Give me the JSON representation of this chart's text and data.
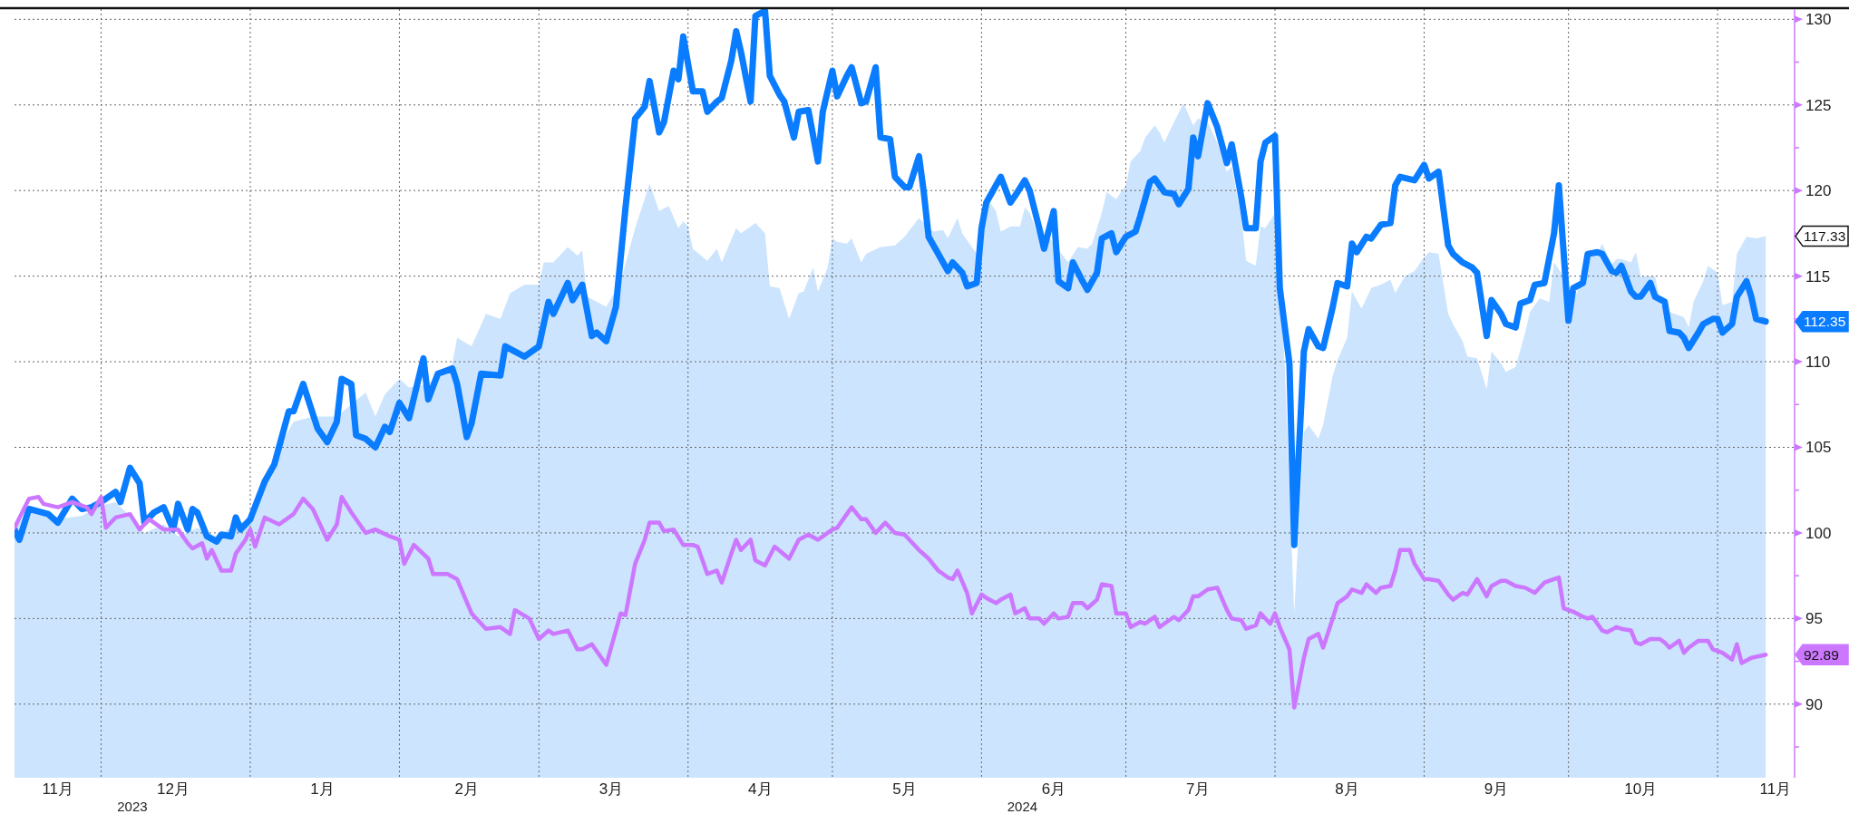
{
  "chart_data": {
    "type": "line",
    "xlim": [
      "2023-11-13",
      "2024-11-17"
    ],
    "xticks": [
      {
        "value": "2023-11-22",
        "label": "11月"
      },
      {
        "value": "2023-12-01",
        "label": null
      },
      {
        "value": "2023-12-16",
        "label": "12月"
      },
      {
        "value": "2024-01-01",
        "label": null
      },
      {
        "value": "2024-01-16",
        "label": "1月"
      },
      {
        "value": "2024-02-01",
        "label": null
      },
      {
        "value": "2024-02-15",
        "label": "2月"
      },
      {
        "value": "2024-03-01",
        "label": null
      },
      {
        "value": "2024-03-16",
        "label": "3月"
      },
      {
        "value": "2024-04-01",
        "label": null
      },
      {
        "value": "2024-04-16",
        "label": "4月"
      },
      {
        "value": "2024-05-01",
        "label": null
      },
      {
        "value": "2024-05-16",
        "label": "5月"
      },
      {
        "value": "2024-06-01",
        "label": null
      },
      {
        "value": "2024-06-16",
        "label": "6月"
      },
      {
        "value": "2024-07-01",
        "label": null
      },
      {
        "value": "2024-07-16",
        "label": "7月"
      },
      {
        "value": "2024-08-01",
        "label": null
      },
      {
        "value": "2024-08-16",
        "label": "8月"
      },
      {
        "value": "2024-09-01",
        "label": null
      },
      {
        "value": "2024-09-16",
        "label": "9月"
      },
      {
        "value": "2024-10-01",
        "label": null
      },
      {
        "value": "2024-10-16",
        "label": "10月"
      },
      {
        "value": "2024-11-01",
        "label": null
      },
      {
        "value": "2024-11-13",
        "label": "11月"
      }
    ],
    "ylim": [
      85.7,
      130.6
    ],
    "yticks": [
      {
        "value": 87.5,
        "label": null
      },
      90,
      {
        "value": 92.5,
        "label": null
      },
      95,
      {
        "value": 97.5,
        "label": null
      },
      100,
      {
        "value": 102.5,
        "label": null
      },
      105,
      {
        "value": 107.5,
        "label": null
      },
      110,
      {
        "value": 112.5,
        "label": null
      },
      115,
      {
        "value": 117.5,
        "label": null
      },
      120,
      {
        "value": 122.5,
        "label": null
      },
      125,
      {
        "value": 127.5,
        "label": null
      },
      130
    ],
    "grid": true,
    "line_style": "solid",
    "annotations": [
      "2023",
      "2024",
      {
        "text": "117.33",
        "x": "2024-11-11",
        "y": 117.33
      },
      {
        "text": "112.35",
        "x": "2024-11-11",
        "y": 112.35
      },
      {
        "text": "92.89",
        "x": "2024-11-11",
        "y": 92.89
      }
    ],
    "series": [
      {
        "type": "area",
        "color": "#cce4fd",
        "x": [
          "2023-11-13",
          "2023-11-16",
          "2023-11-22",
          "2023-11-27",
          "2023-12-01",
          "2023-12-04",
          "2023-12-07",
          "2023-12-10",
          "2023-12-14",
          "2023-12-17",
          "2023-12-21",
          "2023-12-25",
          "2023-12-29",
          "2024-01-01",
          "2024-01-02",
          "2024-01-06",
          "2024-01-10",
          "2024-01-14",
          "2024-01-19",
          "2024-01-25",
          "2024-01-27",
          "2024-01-29",
          "2024-02-01",
          "2024-02-03",
          "2024-02-07",
          "2024-02-12",
          "2024-02-13",
          "2024-02-16",
          "2024-02-19",
          "2024-02-22",
          "2024-02-24",
          "2024-02-27",
          "2024-03-01",
          "2024-03-02",
          "2024-03-04",
          "2024-03-07",
          "2024-03-09",
          "2024-03-10",
          "2024-03-11",
          "2024-03-15",
          "2024-03-18",
          "2024-03-21",
          "2024-03-24",
          "2024-03-26",
          "2024-03-28",
          "2024-03-30",
          "2024-03-31",
          "2024-04-01",
          "2024-04-02",
          "2024-04-05",
          "2024-04-07",
          "2024-04-08",
          "2024-04-11",
          "2024-04-12",
          "2024-04-15",
          "2024-04-17",
          "2024-04-18",
          "2024-04-20",
          "2024-04-22",
          "2024-04-24",
          "2024-04-25",
          "2024-04-27",
          "2024-04-28",
          "2024-04-30",
          "2024-05-01",
          "2024-05-02",
          "2024-05-04",
          "2024-05-05",
          "2024-05-07",
          "2024-05-08",
          "2024-05-11",
          "2024-05-14",
          "2024-05-16",
          "2024-05-19",
          "2024-05-20",
          "2024-05-22",
          "2024-05-24",
          "2024-05-25",
          "2024-05-27",
          "2024-05-28",
          "2024-05-31",
          "2024-06-01",
          "2024-06-02",
          "2024-06-04",
          "2024-06-05",
          "2024-06-07",
          "2024-06-09",
          "2024-06-10",
          "2024-06-11",
          "2024-06-13",
          "2024-06-15",
          "2024-06-16",
          "2024-06-19",
          "2024-06-21",
          "2024-06-23",
          "2024-06-24",
          "2024-06-26",
          "2024-06-27",
          "2024-06-29",
          "2024-07-01",
          "2024-07-02",
          "2024-07-04",
          "2024-07-05",
          "2024-07-07",
          "2024-07-08",
          "2024-07-09",
          "2024-07-11",
          "2024-07-13",
          "2024-07-15",
          "2024-07-16",
          "2024-07-18",
          "2024-07-20",
          "2024-07-22",
          "2024-07-23",
          "2024-07-25",
          "2024-07-26",
          "2024-07-28",
          "2024-07-29",
          "2024-07-30",
          "2024-08-01",
          "2024-08-03",
          "2024-08-05",
          "2024-08-07",
          "2024-08-08",
          "2024-08-10",
          "2024-08-11",
          "2024-08-13",
          "2024-08-14",
          "2024-08-16",
          "2024-08-17",
          "2024-08-19",
          "2024-08-21",
          "2024-08-23",
          "2024-08-25",
          "2024-08-26",
          "2024-08-28",
          "2024-08-30",
          "2024-09-01",
          "2024-09-02",
          "2024-09-04",
          "2024-09-06",
          "2024-09-07",
          "2024-09-09",
          "2024-09-10",
          "2024-09-12",
          "2024-09-14",
          "2024-09-15",
          "2024-09-17",
          "2024-09-18",
          "2024-09-20",
          "2024-09-22",
          "2024-09-23",
          "2024-09-25",
          "2024-09-27",
          "2024-09-28",
          "2024-09-30",
          "2024-10-01",
          "2024-10-02",
          "2024-10-04",
          "2024-10-05",
          "2024-10-07",
          "2024-10-08",
          "2024-10-10",
          "2024-10-11",
          "2024-10-12",
          "2024-10-14",
          "2024-10-15",
          "2024-10-16",
          "2024-10-17",
          "2024-10-19",
          "2024-10-20",
          "2024-10-22",
          "2024-10-24",
          "2024-10-25",
          "2024-10-26",
          "2024-10-27",
          "2024-10-29",
          "2024-10-30",
          "2024-11-01",
          "2024-11-02",
          "2024-11-04",
          "2024-11-05",
          "2024-11-07",
          "2024-11-09",
          "2024-11-11"
        ],
        "values": [
          100.2,
          101.4,
          100.8,
          101.0,
          101.6,
          101.8,
          101.0,
          100.0,
          100.5,
          99.8,
          100.3,
          99.8,
          100.5,
          100.8,
          101.0,
          104.5,
          106.5,
          106.8,
          106.8,
          108.2,
          106.8,
          108.1,
          109.0,
          108.5,
          108.7,
          109.9,
          111.4,
          110.9,
          112.8,
          112.5,
          114.0,
          114.5,
          114.5,
          115.8,
          115.8,
          116.7,
          116.2,
          116.5,
          113.8,
          113.2,
          114.7,
          117.8,
          120.4,
          118.8,
          119.1,
          117.8,
          118.2,
          117.9,
          116.6,
          115.9,
          116.6,
          115.8,
          117.8,
          117.5,
          118.1,
          117.5,
          114.4,
          114.3,
          112.5,
          114.0,
          114.1,
          115.5,
          114.1,
          115.5,
          117.2,
          117.0,
          116.9,
          117.2,
          115.8,
          116.3,
          116.7,
          116.8,
          117.3,
          118.4,
          118.1,
          117.6,
          117.7,
          117.2,
          118.4,
          117.5,
          116.3,
          117.3,
          119.6,
          118.8,
          117.6,
          117.9,
          117.9,
          119.0,
          118.7,
          117.2,
          117.3,
          116.9,
          115.8,
          116.7,
          116.6,
          116.9,
          118.7,
          119.9,
          119.5,
          120.3,
          121.7,
          122.3,
          123.1,
          123.8,
          123.4,
          122.8,
          124.0,
          125.1,
          123.8,
          124.2,
          124.0,
          122.8,
          121.1,
          121.4,
          118.4,
          115.9,
          115.6,
          117.9,
          117.8,
          118.7,
          109.9,
          95.3,
          105.9,
          106.3,
          105.5,
          106.3,
          109.2,
          110.1,
          111.4,
          114.1,
          113.1,
          114.3,
          114.5,
          114.8,
          114.0,
          115.0,
          115.3,
          116.1,
          116.4,
          116.3,
          112.8,
          112.2,
          111.2,
          110.3,
          110.2,
          108.4,
          110.6,
          109.9,
          109.4,
          109.7,
          111.7,
          112.9,
          113.7,
          113.5,
          115.8,
          115.0,
          112.9,
          113.5,
          115.0,
          116.1,
          116.3,
          116.9,
          115.7,
          116.0,
          116.0,
          115.8,
          116.4,
          115.0,
          115.0,
          115.0,
          113.6,
          112.9,
          112.7,
          112.6,
          112.0,
          113.5,
          114.7,
          115.6,
          115.2,
          113.3,
          113.5,
          116.3,
          117.3,
          117.2,
          117.33
        ]
      },
      {
        "type": "line",
        "color": "#0a7cff",
        "x": [
          "2023-11-13",
          "2023-11-14",
          "2023-11-16",
          "2023-11-20",
          "2023-11-22",
          "2023-11-25",
          "2023-11-27",
          "2023-11-29",
          "2023-12-01",
          "2023-12-04",
          "2023-12-05",
          "2023-12-07",
          "2023-12-09",
          "2023-12-10",
          "2023-12-12",
          "2023-12-14",
          "2023-12-16",
          "2023-12-17",
          "2023-12-19",
          "2023-12-20",
          "2023-12-21",
          "2023-12-23",
          "2023-12-25",
          "2023-12-26",
          "2023-12-28",
          "2023-12-29",
          "2023-12-30",
          "2024-01-01",
          "2024-01-04",
          "2024-01-06",
          "2024-01-09",
          "2024-01-10",
          "2024-01-12",
          "2024-01-15",
          "2024-01-17",
          "2024-01-19",
          "2024-01-20",
          "2024-01-22",
          "2024-01-23",
          "2024-01-25",
          "2024-01-27",
          "2024-01-29",
          "2024-01-30",
          "2024-02-01",
          "2024-02-03",
          "2024-02-06",
          "2024-02-07",
          "2024-02-09",
          "2024-02-12",
          "2024-02-13",
          "2024-02-15",
          "2024-02-16",
          "2024-02-18",
          "2024-02-22",
          "2024-02-23",
          "2024-02-27",
          "2024-03-01",
          "2024-03-03",
          "2024-03-04",
          "2024-03-07",
          "2024-03-08",
          "2024-03-10",
          "2024-03-12",
          "2024-03-13",
          "2024-03-15",
          "2024-03-17",
          "2024-03-19",
          "2024-03-21",
          "2024-03-23",
          "2024-03-24",
          "2024-03-26",
          "2024-03-27",
          "2024-03-29",
          "2024-03-30",
          "2024-03-31",
          "2024-04-02",
          "2024-04-04",
          "2024-04-05",
          "2024-04-07",
          "2024-04-08",
          "2024-04-10",
          "2024-04-11",
          "2024-04-12",
          "2024-04-14",
          "2024-04-15",
          "2024-04-17",
          "2024-04-18",
          "2024-04-20",
          "2024-04-21",
          "2024-04-23",
          "2024-04-24",
          "2024-04-26",
          "2024-04-28",
          "2024-04-29",
          "2024-05-01",
          "2024-05-02",
          "2024-05-04",
          "2024-05-05",
          "2024-05-07",
          "2024-05-08",
          "2024-05-10",
          "2024-05-11",
          "2024-05-13",
          "2024-05-14",
          "2024-05-16",
          "2024-05-17",
          "2024-05-19",
          "2024-05-20",
          "2024-05-21",
          "2024-05-23",
          "2024-05-25",
          "2024-05-26",
          "2024-05-28",
          "2024-05-29",
          "2024-05-31",
          "2024-06-01",
          "2024-06-02",
          "2024-06-04",
          "2024-06-05",
          "2024-06-07",
          "2024-06-08",
          "2024-06-10",
          "2024-06-11",
          "2024-06-13",
          "2024-06-14",
          "2024-06-16",
          "2024-06-17",
          "2024-06-19",
          "2024-06-20",
          "2024-06-22",
          "2024-06-23",
          "2024-06-25",
          "2024-06-26",
          "2024-06-28",
          "2024-06-29",
          "2024-07-01",
          "2024-07-03",
          "2024-07-04",
          "2024-07-06",
          "2024-07-07",
          "2024-07-09",
          "2024-07-11",
          "2024-07-12",
          "2024-07-14",
          "2024-07-15",
          "2024-07-16",
          "2024-07-18",
          "2024-07-20",
          "2024-07-22",
          "2024-07-23",
          "2024-07-25",
          "2024-07-26",
          "2024-07-28",
          "2024-07-29",
          "2024-07-30",
          "2024-08-01",
          "2024-08-02",
          "2024-08-04",
          "2024-08-05",
          "2024-08-07",
          "2024-08-08",
          "2024-08-10",
          "2024-08-11",
          "2024-08-13",
          "2024-08-14",
          "2024-08-16",
          "2024-08-17",
          "2024-08-18",
          "2024-08-20",
          "2024-08-21",
          "2024-08-23",
          "2024-08-25",
          "2024-08-26",
          "2024-08-27",
          "2024-08-30",
          "2024-09-01",
          "2024-09-02",
          "2024-09-04",
          "2024-09-06",
          "2024-09-07",
          "2024-09-09",
          "2024-09-11",
          "2024-09-12",
          "2024-09-14",
          "2024-09-15",
          "2024-09-17",
          "2024-09-18",
          "2024-09-20",
          "2024-09-21",
          "2024-09-23",
          "2024-09-24",
          "2024-09-26",
          "2024-09-28",
          "2024-09-29",
          "2024-10-01",
          "2024-10-02",
          "2024-10-04",
          "2024-10-05",
          "2024-10-07",
          "2024-10-08",
          "2024-10-10",
          "2024-10-11",
          "2024-10-12",
          "2024-10-14",
          "2024-10-15",
          "2024-10-16",
          "2024-10-18",
          "2024-10-19",
          "2024-10-21",
          "2024-10-22",
          "2024-10-24",
          "2024-10-25",
          "2024-10-26",
          "2024-10-28",
          "2024-10-29",
          "2024-10-31",
          "2024-11-01",
          "2024-11-02",
          "2024-11-04",
          "2024-11-05",
          "2024-11-07",
          "2024-11-08",
          "2024-11-09",
          "2024-11-11"
        ],
        "values": [
          100.2,
          99.6,
          101.4,
          101.1,
          100.6,
          102.0,
          101.4,
          101.5,
          101.8,
          102.4,
          101.8,
          103.8,
          102.9,
          100.6,
          101.2,
          101.5,
          100.2,
          101.7,
          100.2,
          101.4,
          101.2,
          99.8,
          99.5,
          99.9,
          99.8,
          100.9,
          100.2,
          100.8,
          103.0,
          104.0,
          107.1,
          107.1,
          108.7,
          106.1,
          105.3,
          106.5,
          109.0,
          108.7,
          105.7,
          105.5,
          105.0,
          106.2,
          105.9,
          107.6,
          106.7,
          110.2,
          107.8,
          109.3,
          109.6,
          108.7,
          105.6,
          106.4,
          109.3,
          109.2,
          110.9,
          110.3,
          110.9,
          113.5,
          112.8,
          114.6,
          113.6,
          114.5,
          111.5,
          111.7,
          111.2,
          113.2,
          119.0,
          124.2,
          124.9,
          126.4,
          123.4,
          124.0,
          127.0,
          126.5,
          129.0,
          125.8,
          125.8,
          124.6,
          125.2,
          125.4,
          127.6,
          129.3,
          128.1,
          125.2,
          130.2,
          130.5,
          126.7,
          125.6,
          125.2,
          123.1,
          124.6,
          124.7,
          121.7,
          124.6,
          127.0,
          125.5,
          126.7,
          127.2,
          125.1,
          125.2,
          127.2,
          123.1,
          123.0,
          120.8,
          120.2,
          120.2,
          122.0,
          119.9,
          117.3,
          116.3,
          115.3,
          115.8,
          115.2,
          114.4,
          114.6,
          117.8,
          119.3,
          120.3,
          120.8,
          119.3,
          119.7,
          120.6,
          120.0,
          117.8,
          116.6,
          118.8,
          114.7,
          114.3,
          115.8,
          114.7,
          114.2,
          115.2,
          117.2,
          117.5,
          116.4,
          117.3,
          117.6,
          118.5,
          120.5,
          120.7,
          119.9,
          119.8,
          119.2,
          120.1,
          123.1,
          122.0,
          125.1,
          123.7,
          121.6,
          122.7,
          119.6,
          117.8,
          117.8,
          121.7,
          122.8,
          123.2,
          114.3,
          109.9,
          99.3,
          110.6,
          111.9,
          110.9,
          110.8,
          113.2,
          114.6,
          114.4,
          116.9,
          116.4,
          117.3,
          117.2,
          118.0,
          118.1,
          120.3,
          120.8,
          120.6,
          121.5,
          120.7,
          121.1,
          116.8,
          116.3,
          115.8,
          115.5,
          115.2,
          111.5,
          113.6,
          112.8,
          112.2,
          112.0,
          113.4,
          113.6,
          114.5,
          114.6,
          117.5,
          120.3,
          112.4,
          114.3,
          114.6,
          116.3,
          116.4,
          116.3,
          115.3,
          115.2,
          115.6,
          114.1,
          113.8,
          113.8,
          114.6,
          113.8,
          113.5,
          111.8,
          111.7,
          111.4,
          110.8,
          111.7,
          112.2,
          112.5,
          112.5,
          111.7,
          112.2,
          113.8,
          114.7,
          113.8,
          112.5,
          112.35
        ]
      },
      {
        "type": "line",
        "color": "#cc77ff",
        "x": [
          "2023-11-13",
          "2023-11-16",
          "2023-11-18",
          "2023-11-19",
          "2023-11-22",
          "2023-11-25",
          "2023-11-28",
          "2023-11-29",
          "2023-12-01",
          "2023-12-02",
          "2023-12-04",
          "2023-12-07",
          "2023-12-09",
          "2023-12-11",
          "2023-12-14",
          "2023-12-17",
          "2023-12-19",
          "2023-12-20",
          "2023-12-22",
          "2023-12-23",
          "2023-12-24",
          "2023-12-26",
          "2023-12-28",
          "2023-12-29",
          "2023-12-31",
          "2024-01-01",
          "2024-01-02",
          "2024-01-04",
          "2024-01-07",
          "2024-01-10",
          "2024-01-12",
          "2024-01-14",
          "2024-01-17",
          "2024-01-19",
          "2024-01-20",
          "2024-01-22",
          "2024-01-25",
          "2024-01-27",
          "2024-01-30",
          "2024-02-01",
          "2024-02-02",
          "2024-02-04",
          "2024-02-07",
          "2024-02-08",
          "2024-02-11",
          "2024-02-13",
          "2024-02-16",
          "2024-02-19",
          "2024-02-22",
          "2024-02-24",
          "2024-02-25",
          "2024-02-28",
          "2024-03-01",
          "2024-03-03",
          "2024-03-04",
          "2024-03-07",
          "2024-03-09",
          "2024-03-10",
          "2024-03-12",
          "2024-03-13",
          "2024-03-15",
          "2024-03-18",
          "2024-03-19",
          "2024-03-21",
          "2024-03-23",
          "2024-03-24",
          "2024-03-26",
          "2024-03-27",
          "2024-03-29",
          "2024-03-31",
          "2024-04-02",
          "2024-04-03",
          "2024-04-05",
          "2024-04-07",
          "2024-04-08",
          "2024-04-10",
          "2024-04-11",
          "2024-04-12",
          "2024-04-14",
          "2024-04-15",
          "2024-04-17",
          "2024-04-19",
          "2024-04-22",
          "2024-04-24",
          "2024-04-26",
          "2024-04-28",
          "2024-05-01",
          "2024-05-02",
          "2024-05-04",
          "2024-05-05",
          "2024-05-07",
          "2024-05-08",
          "2024-05-10",
          "2024-05-12",
          "2024-05-14",
          "2024-05-16",
          "2024-05-19",
          "2024-05-21",
          "2024-05-23",
          "2024-05-25",
          "2024-05-26",
          "2024-05-27",
          "2024-05-29",
          "2024-05-30",
          "2024-06-01",
          "2024-06-02",
          "2024-06-04",
          "2024-06-05",
          "2024-06-07",
          "2024-06-08",
          "2024-06-10",
          "2024-06-11",
          "2024-06-13",
          "2024-06-14",
          "2024-06-16",
          "2024-06-17",
          "2024-06-19",
          "2024-06-20",
          "2024-06-22",
          "2024-06-23",
          "2024-06-25",
          "2024-06-26",
          "2024-06-28",
          "2024-06-29",
          "2024-07-01",
          "2024-07-02",
          "2024-07-04",
          "2024-07-05",
          "2024-07-07",
          "2024-07-08",
          "2024-07-09",
          "2024-07-11",
          "2024-07-12",
          "2024-07-14",
          "2024-07-15",
          "2024-07-16",
          "2024-07-18",
          "2024-07-20",
          "2024-07-22",
          "2024-07-23",
          "2024-07-25",
          "2024-07-26",
          "2024-07-28",
          "2024-07-29",
          "2024-07-31",
          "2024-08-01",
          "2024-08-02",
          "2024-08-04",
          "2024-08-05",
          "2024-08-07",
          "2024-08-08",
          "2024-08-10",
          "2024-08-11",
          "2024-08-13",
          "2024-08-14",
          "2024-08-16",
          "2024-08-17",
          "2024-08-19",
          "2024-08-20",
          "2024-08-22",
          "2024-08-23",
          "2024-08-25",
          "2024-08-26",
          "2024-08-27",
          "2024-08-29",
          "2024-08-30",
          "2024-09-01",
          "2024-09-02",
          "2024-09-04",
          "2024-09-06",
          "2024-09-07",
          "2024-09-09",
          "2024-09-10",
          "2024-09-12",
          "2024-09-14",
          "2024-09-15",
          "2024-09-17",
          "2024-09-18",
          "2024-09-20",
          "2024-09-22",
          "2024-09-24",
          "2024-09-26",
          "2024-09-28",
          "2024-09-29",
          "2024-09-30",
          "2024-10-02",
          "2024-10-04",
          "2024-10-05",
          "2024-10-06",
          "2024-10-08",
          "2024-10-09",
          "2024-10-11",
          "2024-10-12",
          "2024-10-14",
          "2024-10-15",
          "2024-10-16",
          "2024-10-18",
          "2024-10-20",
          "2024-10-21",
          "2024-10-22",
          "2024-10-24",
          "2024-10-25",
          "2024-10-26",
          "2024-10-28",
          "2024-10-30",
          "2024-10-31",
          "2024-11-01",
          "2024-11-02",
          "2024-11-04",
          "2024-11-05",
          "2024-11-06",
          "2024-11-08",
          "2024-11-11"
        ],
        "values": [
          100.3,
          102.0,
          102.1,
          101.7,
          101.5,
          101.8,
          101.5,
          101.1,
          102.1,
          100.3,
          100.9,
          101.1,
          100.2,
          100.8,
          100.2,
          100.2,
          99.4,
          99.1,
          99.4,
          98.5,
          99.0,
          97.8,
          97.8,
          98.8,
          99.6,
          100.2,
          99.2,
          100.9,
          100.5,
          101.1,
          102.0,
          101.4,
          99.6,
          100.5,
          102.1,
          101.2,
          100.0,
          100.2,
          99.8,
          99.6,
          98.2,
          99.3,
          98.5,
          97.6,
          97.6,
          97.3,
          95.3,
          94.4,
          94.5,
          94.1,
          95.5,
          95.0,
          93.8,
          94.3,
          94.1,
          94.3,
          93.2,
          93.2,
          93.5,
          93.1,
          92.3,
          95.3,
          95.2,
          98.2,
          99.6,
          100.6,
          100.6,
          100.1,
          100.2,
          99.3,
          99.3,
          99.2,
          97.6,
          97.8,
          97.1,
          98.8,
          99.6,
          99.0,
          99.6,
          98.4,
          98.1,
          99.2,
          98.5,
          99.6,
          99.9,
          99.6,
          100.2,
          100.3,
          101.1,
          101.5,
          100.8,
          100.8,
          100.0,
          100.6,
          100.0,
          99.9,
          99.0,
          98.5,
          97.8,
          97.4,
          97.3,
          97.8,
          96.5,
          95.3,
          96.4,
          96.2,
          95.9,
          96.1,
          96.4,
          95.3,
          95.6,
          95.0,
          95.0,
          94.7,
          95.3,
          95.0,
          95.1,
          95.9,
          95.9,
          95.6,
          96.1,
          97.0,
          96.9,
          95.3,
          95.3,
          94.5,
          94.8,
          94.7,
          95.1,
          94.5,
          94.7,
          95.1,
          94.9,
          95.5,
          96.3,
          96.3,
          96.7,
          96.8,
          95.5,
          95.0,
          94.9,
          94.4,
          94.6,
          95.3,
          94.7,
          95.3,
          94.5,
          93.2,
          89.8,
          92.7,
          93.8,
          94.1,
          93.3,
          95.0,
          95.9,
          96.3,
          96.7,
          96.5,
          97.0,
          96.5,
          96.8,
          96.9,
          97.8,
          99.0,
          99.0,
          98.2,
          97.3,
          97.3,
          97.2,
          96.4,
          96.1,
          96.5,
          96.4,
          97.3,
          96.3,
          96.9,
          97.2,
          97.2,
          96.9,
          96.8,
          96.5,
          97.1,
          97.3,
          97.4,
          95.6,
          95.4,
          95.1,
          95.0,
          95.1,
          94.3,
          94.2,
          94.5,
          94.4,
          94.3,
          93.6,
          93.5,
          93.8,
          93.8,
          93.6,
          93.3,
          93.7,
          93.0,
          93.3,
          93.7,
          93.7,
          93.2,
          93.1,
          93.0,
          92.6,
          93.5,
          92.4,
          92.7,
          92.89
        ]
      }
    ]
  }
}
